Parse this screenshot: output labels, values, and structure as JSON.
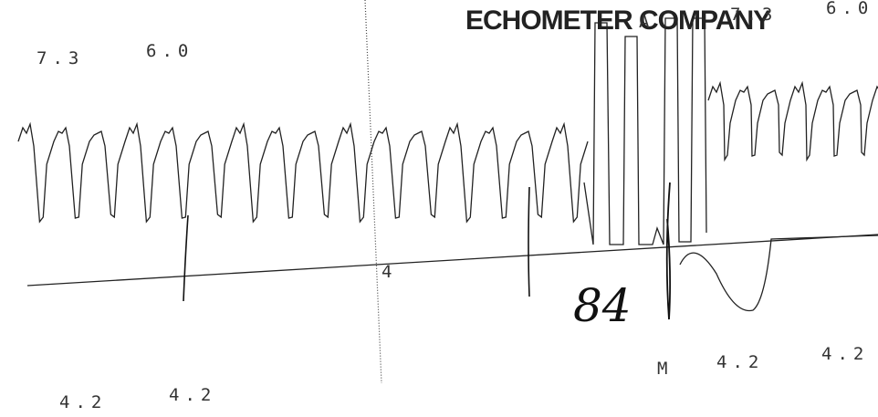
{
  "header": {
    "title": "ECHOMETER COMPANY"
  },
  "labels": {
    "top_left": [
      "7.3",
      "6.0"
    ],
    "top_right": [
      "A",
      "7.3",
      "6.0"
    ],
    "marker": "4",
    "handwritten": "84",
    "bottom_left": [
      "4.2",
      "4.2"
    ],
    "bottom_right": [
      "M",
      "4.2",
      "4.2"
    ]
  }
}
